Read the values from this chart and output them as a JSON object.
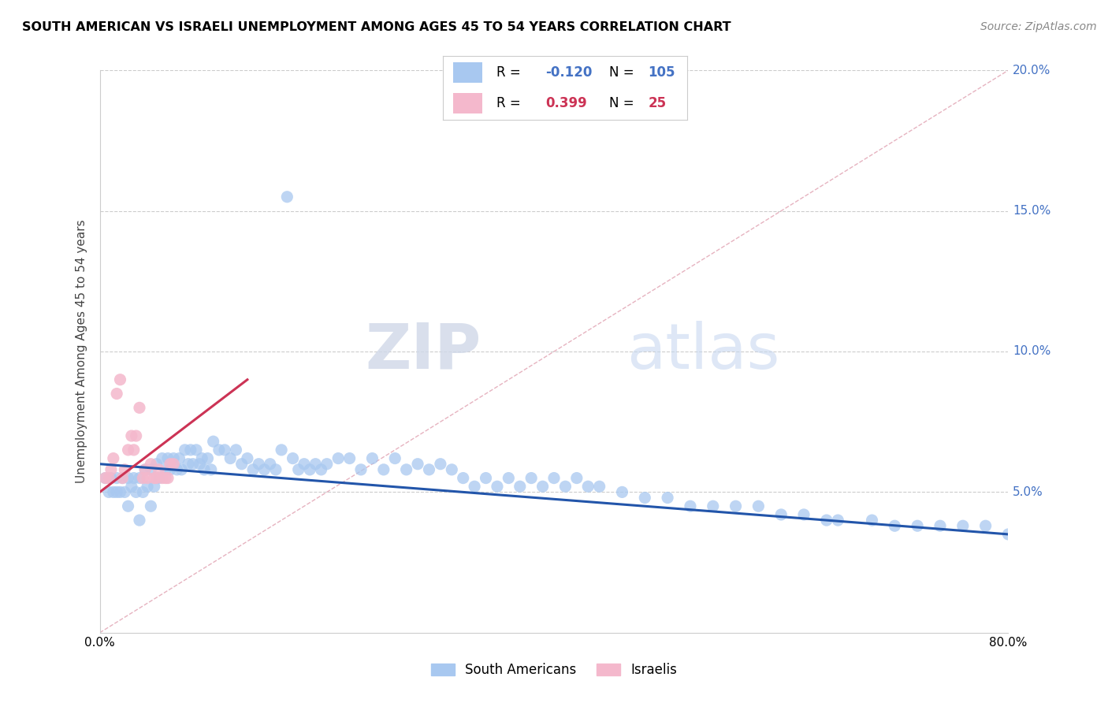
{
  "title": "SOUTH AMERICAN VS ISRAELI UNEMPLOYMENT AMONG AGES 45 TO 54 YEARS CORRELATION CHART",
  "source": "Source: ZipAtlas.com",
  "ylabel": "Unemployment Among Ages 45 to 54 years",
  "xlim": [
    0,
    0.8
  ],
  "ylim": [
    0,
    0.2
  ],
  "xticks": [
    0.0,
    0.1,
    0.2,
    0.3,
    0.4,
    0.5,
    0.6,
    0.7,
    0.8
  ],
  "xtick_labels": [
    "0.0%",
    "",
    "",
    "",
    "",
    "",
    "",
    "",
    "80.0%"
  ],
  "ytick_labels_vals": [
    0.05,
    0.1,
    0.15,
    0.2
  ],
  "ytick_labels_text": [
    "5.0%",
    "10.0%",
    "15.0%",
    "20.0%"
  ],
  "sa_color": "#a8c8f0",
  "is_color": "#f4b8cc",
  "sa_line_color": "#2255aa",
  "is_line_color": "#cc3355",
  "ref_line_color": "#e8aabb",
  "legend_sa_r": "-0.120",
  "legend_sa_n": "105",
  "legend_is_r": "0.399",
  "legend_is_n": "25",
  "watermark_zip": "ZIP",
  "watermark_atlas": "atlas",
  "sa_x": [
    0.005,
    0.008,
    0.01,
    0.012,
    0.015,
    0.018,
    0.02,
    0.022,
    0.025,
    0.028,
    0.03,
    0.032,
    0.035,
    0.038,
    0.04,
    0.042,
    0.045,
    0.048,
    0.05,
    0.052,
    0.055,
    0.058,
    0.06,
    0.062,
    0.065,
    0.068,
    0.07,
    0.072,
    0.075,
    0.078,
    0.08,
    0.082,
    0.085,
    0.088,
    0.09,
    0.092,
    0.095,
    0.098,
    0.1,
    0.105,
    0.11,
    0.115,
    0.12,
    0.125,
    0.13,
    0.135,
    0.14,
    0.145,
    0.15,
    0.155,
    0.16,
    0.165,
    0.17,
    0.175,
    0.18,
    0.185,
    0.19,
    0.195,
    0.2,
    0.21,
    0.22,
    0.23,
    0.24,
    0.25,
    0.26,
    0.27,
    0.28,
    0.29,
    0.3,
    0.31,
    0.32,
    0.33,
    0.34,
    0.35,
    0.36,
    0.37,
    0.38,
    0.39,
    0.4,
    0.41,
    0.42,
    0.43,
    0.44,
    0.46,
    0.48,
    0.5,
    0.52,
    0.54,
    0.56,
    0.58,
    0.6,
    0.62,
    0.64,
    0.65,
    0.68,
    0.7,
    0.72,
    0.74,
    0.76,
    0.78,
    0.8,
    0.015,
    0.025,
    0.035,
    0.045
  ],
  "sa_y": [
    0.055,
    0.05,
    0.055,
    0.05,
    0.055,
    0.05,
    0.055,
    0.05,
    0.055,
    0.052,
    0.055,
    0.05,
    0.055,
    0.05,
    0.058,
    0.052,
    0.058,
    0.052,
    0.06,
    0.055,
    0.062,
    0.058,
    0.062,
    0.058,
    0.062,
    0.058,
    0.062,
    0.058,
    0.065,
    0.06,
    0.065,
    0.06,
    0.065,
    0.06,
    0.062,
    0.058,
    0.062,
    0.058,
    0.068,
    0.065,
    0.065,
    0.062,
    0.065,
    0.06,
    0.062,
    0.058,
    0.06,
    0.058,
    0.06,
    0.058,
    0.065,
    0.155,
    0.062,
    0.058,
    0.06,
    0.058,
    0.06,
    0.058,
    0.06,
    0.062,
    0.062,
    0.058,
    0.062,
    0.058,
    0.062,
    0.058,
    0.06,
    0.058,
    0.06,
    0.058,
    0.055,
    0.052,
    0.055,
    0.052,
    0.055,
    0.052,
    0.055,
    0.052,
    0.055,
    0.052,
    0.055,
    0.052,
    0.052,
    0.05,
    0.048,
    0.048,
    0.045,
    0.045,
    0.045,
    0.045,
    0.042,
    0.042,
    0.04,
    0.04,
    0.04,
    0.038,
    0.038,
    0.038,
    0.038,
    0.038,
    0.035,
    0.05,
    0.045,
    0.04,
    0.045
  ],
  "is_x": [
    0.005,
    0.008,
    0.01,
    0.012,
    0.015,
    0.018,
    0.02,
    0.022,
    0.025,
    0.028,
    0.03,
    0.032,
    0.035,
    0.038,
    0.04,
    0.042,
    0.045,
    0.048,
    0.05,
    0.052,
    0.055,
    0.058,
    0.06,
    0.062,
    0.065
  ],
  "is_y": [
    0.055,
    0.055,
    0.058,
    0.062,
    0.085,
    0.09,
    0.055,
    0.058,
    0.065,
    0.07,
    0.065,
    0.07,
    0.08,
    0.055,
    0.058,
    0.055,
    0.06,
    0.055,
    0.055,
    0.058,
    0.055,
    0.055,
    0.055,
    0.06,
    0.06
  ]
}
